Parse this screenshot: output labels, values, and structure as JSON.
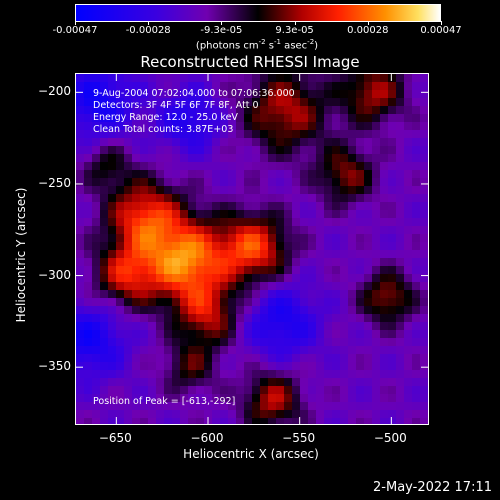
{
  "colorbar": {
    "tick_labels": [
      "-0.00047",
      "-0.00028",
      "-9.3e-05",
      "9.3e-05",
      "0.00028",
      "0.00047"
    ],
    "unit": {
      "text": "(photons cm",
      "exp1": "-2",
      "mid1": " s",
      "exp2": "-1",
      "mid2": " asec",
      "exp3": "-2",
      "end": ")"
    },
    "range": [
      -0.00047,
      0.00047
    ]
  },
  "chart_data": {
    "type": "heatmap",
    "title": "Reconstructed RHESSI Image",
    "xlabel": "Heliocentric X (arcsec)",
    "ylabel": "Heliocentric Y (arcsec)",
    "xlim": [
      -672,
      -480
    ],
    "ylim": [
      -381,
      -190
    ],
    "x_ticks": [
      -650,
      -600,
      -550,
      -500
    ],
    "y_ticks": [
      -200,
      -250,
      -300,
      -350
    ],
    "peak": [
      -613,
      -292
    ],
    "info_lines": [
      "9-Aug-2004 07:02:04.000 to 07:06:36.000",
      "Detectors: 3F 4F 5F 6F 7F 8F, Att 0",
      "Energy Range: 12.0 - 25.0 keV",
      "Clean    Total counts: 3.87E+03"
    ],
    "peak_label": "Position of Peak = [-613,-292]",
    "sources": [
      {
        "x": -612,
        "y": -292,
        "sigma": 16,
        "amp": 0.00047
      },
      {
        "x": -635,
        "y": -268,
        "sigma": 14,
        "amp": 0.00036
      },
      {
        "x": -575,
        "y": -285,
        "sigma": 13,
        "amp": 0.00038
      },
      {
        "x": -645,
        "y": -300,
        "sigma": 12,
        "amp": 0.0003
      },
      {
        "x": -600,
        "y": -322,
        "sigma": 12,
        "amp": 0.00026
      },
      {
        "x": -558,
        "y": -210,
        "sigma": 16,
        "amp": 0.00028
      },
      {
        "x": -510,
        "y": -200,
        "sigma": 12,
        "amp": 0.00027
      },
      {
        "x": -525,
        "y": -245,
        "sigma": 11,
        "amp": 0.00024
      },
      {
        "x": -502,
        "y": -312,
        "sigma": 10,
        "amp": 0.00026
      },
      {
        "x": -565,
        "y": -368,
        "sigma": 11,
        "amp": 0.00028
      },
      {
        "x": -610,
        "y": -350,
        "sigma": 10,
        "amp": 0.00018
      },
      {
        "x": -655,
        "y": -240,
        "sigma": 9,
        "amp": 0.00016
      },
      {
        "x": -560,
        "y": -325,
        "sigma": 14,
        "amp": -0.00022
      },
      {
        "x": -665,
        "y": -335,
        "sigma": 14,
        "amp": -0.00024
      },
      {
        "x": -660,
        "y": -205,
        "sigma": 14,
        "amp": -0.00025
      },
      {
        "x": -610,
        "y": -215,
        "sigma": 12,
        "amp": -0.0002
      }
    ]
  },
  "footer": {
    "date": "2-May-2022 17:11"
  }
}
